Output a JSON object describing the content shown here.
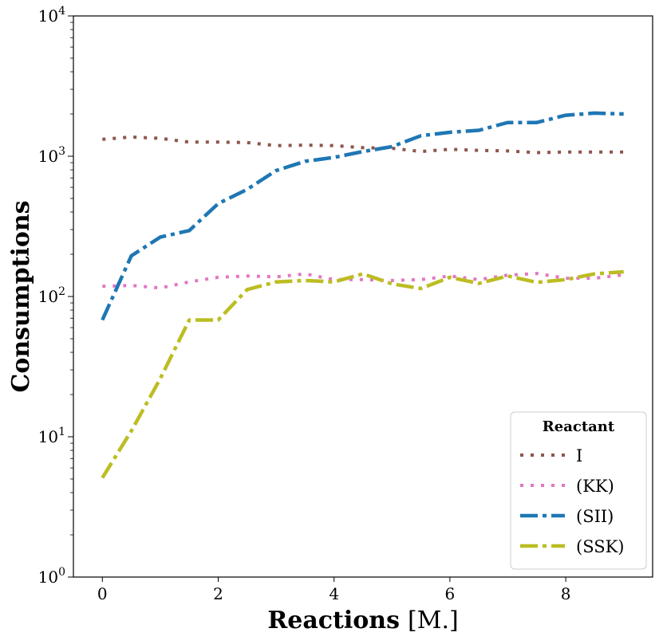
{
  "chart_data": {
    "type": "line",
    "yscale": "log",
    "xlabel": "Reactions",
    "xlabel_unit": "[M.]",
    "ylabel": "Consumptions",
    "xlim": [
      -0.5,
      9.5
    ],
    "ylim": [
      1,
      10000
    ],
    "xticks": [
      0,
      2,
      4,
      6,
      8
    ],
    "yticks": [
      {
        "base": "10",
        "exp": "0",
        "value": 1
      },
      {
        "base": "10",
        "exp": "1",
        "value": 10
      },
      {
        "base": "10",
        "exp": "2",
        "value": 100
      },
      {
        "base": "10",
        "exp": "3",
        "value": 1000
      },
      {
        "base": "10",
        "exp": "4",
        "value": 10000
      }
    ],
    "legend": {
      "title": "Reactant",
      "position": "lower right"
    },
    "x": [
      0,
      0.5,
      1,
      1.5,
      2,
      2.5,
      3,
      3.5,
      4,
      4.5,
      5,
      5.5,
      6,
      6.5,
      7,
      7.5,
      8,
      8.5,
      9
    ],
    "series": [
      {
        "name": "I",
        "color": "#8c564b",
        "style": "dotted",
        "values": [
          1320,
          1370,
          1340,
          1260,
          1260,
          1250,
          1190,
          1200,
          1190,
          1150,
          1140,
          1080,
          1120,
          1100,
          1090,
          1060,
          1070,
          1070,
          1070
        ]
      },
      {
        "name": "(KK)",
        "color": "#e377c2",
        "style": "dotted",
        "values": [
          118,
          120,
          115,
          127,
          137,
          140,
          138,
          145,
          132,
          132,
          130,
          132,
          140,
          132,
          142,
          146,
          135,
          135,
          143
        ]
      },
      {
        "name": "(SII)",
        "color": "#1f77b4",
        "style": "dashdot",
        "values": [
          68,
          195,
          265,
          295,
          460,
          580,
          790,
          920,
          980,
          1080,
          1170,
          1400,
          1480,
          1530,
          1740,
          1740,
          1960,
          2030,
          2000
        ]
      },
      {
        "name": "(SSK)",
        "color": "#bcbd22",
        "style": "dashdot",
        "values": [
          5.1,
          11,
          26,
          68,
          68,
          112,
          127,
          130,
          127,
          145,
          123,
          114,
          137,
          124,
          140,
          126,
          132,
          145,
          150
        ]
      }
    ]
  }
}
